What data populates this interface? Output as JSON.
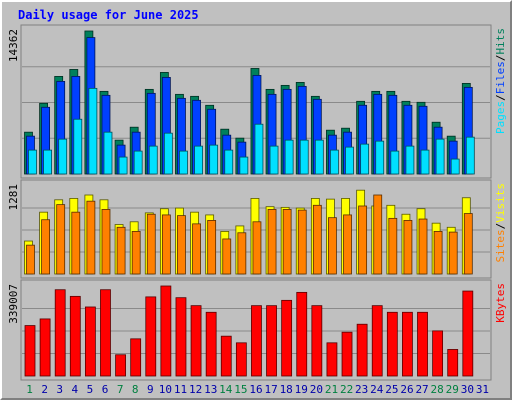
{
  "title": "Daily usage for June 2025",
  "colors": {
    "background": "#c0c0c0",
    "title": "#0000ff",
    "hits": "#00805c",
    "files": "#0040ff",
    "pages": "#00e0ff",
    "visits": "#ffff00",
    "sites": "#ff8000",
    "kbytes": "#ff0000",
    "weekend_label": "#008040",
    "day_label": "#0000aa"
  },
  "chart_data": [
    {
      "type": "bar",
      "panel": "hits-files-pages",
      "max_label": "14362",
      "ylim": [
        0,
        14362
      ],
      "grid": true,
      "legend": [
        "Pages",
        "Files",
        "Hits"
      ],
      "categories": [
        "1",
        "2",
        "3",
        "4",
        "5",
        "6",
        "7",
        "8",
        "9",
        "10",
        "11",
        "12",
        "13",
        "14",
        "15",
        "16",
        "17",
        "18",
        "19",
        "20",
        "21",
        "22",
        "23",
        "24",
        "25",
        "26",
        "27",
        "28",
        "29",
        "30",
        "31"
      ],
      "series": [
        {
          "name": "Hits",
          "values": [
            4200,
            7100,
            9800,
            10500,
            14362,
            8300,
            3400,
            4700,
            8500,
            10200,
            8000,
            7800,
            6900,
            4500,
            3600,
            10600,
            8500,
            8900,
            9200,
            7800,
            4400,
            4600,
            7300,
            8300,
            8300,
            7300,
            7200,
            5200,
            3800,
            9100,
            0
          ]
        },
        {
          "name": "Files",
          "values": [
            3800,
            6700,
            9300,
            9800,
            13700,
            7900,
            2900,
            4200,
            8100,
            9700,
            7600,
            7400,
            6500,
            3900,
            3200,
            9900,
            8000,
            8500,
            8800,
            7500,
            3900,
            4200,
            6900,
            8000,
            7900,
            6900,
            6800,
            4700,
            3300,
            8700,
            0
          ]
        },
        {
          "name": "Pages",
          "values": [
            2400,
            2400,
            3500,
            5500,
            8600,
            4200,
            1700,
            2300,
            2800,
            4100,
            2300,
            2800,
            2900,
            2400,
            1700,
            5000,
            2800,
            3400,
            3400,
            3400,
            2400,
            2700,
            3000,
            3300,
            2300,
            2800,
            2400,
            3500,
            1500,
            3700,
            0
          ]
        }
      ]
    },
    {
      "type": "bar",
      "panel": "visits-sites",
      "max_label": "1281",
      "ylim": [
        0,
        1281
      ],
      "grid": true,
      "legend": [
        "Sites",
        "Visits"
      ],
      "categories": [
        "1",
        "2",
        "3",
        "4",
        "5",
        "6",
        "7",
        "8",
        "9",
        "10",
        "11",
        "12",
        "13",
        "14",
        "15",
        "16",
        "17",
        "18",
        "19",
        "20",
        "21",
        "22",
        "23",
        "24",
        "25",
        "26",
        "27",
        "28",
        "29",
        "30",
        "31"
      ],
      "series": [
        {
          "name": "Visits",
          "values": [
            480,
            900,
            1080,
            1100,
            1150,
            1080,
            720,
            760,
            890,
            950,
            960,
            900,
            860,
            620,
            700,
            1100,
            980,
            970,
            960,
            1100,
            1090,
            1100,
            1220,
            990,
            1000,
            870,
            950,
            740,
            680,
            1110,
            0
          ]
        },
        {
          "name": "Sites",
          "values": [
            420,
            790,
            1010,
            900,
            1060,
            940,
            680,
            620,
            870,
            860,
            850,
            730,
            780,
            510,
            600,
            760,
            940,
            940,
            930,
            1000,
            820,
            860,
            990,
            1150,
            810,
            780,
            800,
            620,
            610,
            880,
            0
          ]
        }
      ]
    },
    {
      "type": "bar",
      "panel": "kbytes",
      "max_label": "339007",
      "ylim": [
        0,
        339007
      ],
      "grid": true,
      "legend": [
        "KBytes"
      ],
      "categories": [
        "1",
        "2",
        "3",
        "4",
        "5",
        "6",
        "7",
        "8",
        "9",
        "10",
        "11",
        "12",
        "13",
        "14",
        "15",
        "16",
        "17",
        "18",
        "19",
        "20",
        "21",
        "22",
        "23",
        "24",
        "25",
        "26",
        "27",
        "28",
        "29",
        "30",
        "31"
      ],
      "series": [
        {
          "name": "KBytes",
          "values": [
            190000,
            215000,
            325000,
            300000,
            260000,
            325000,
            80000,
            140000,
            298000,
            339007,
            295000,
            265000,
            240000,
            150000,
            125000,
            265000,
            265000,
            285000,
            315000,
            265000,
            125000,
            165000,
            195000,
            265000,
            240000,
            240000,
            240000,
            170000,
            100000,
            320000,
            0
          ]
        }
      ]
    }
  ],
  "x_axis": {
    "labels": [
      "1",
      "2",
      "3",
      "4",
      "5",
      "6",
      "7",
      "8",
      "9",
      "10",
      "11",
      "12",
      "13",
      "14",
      "15",
      "16",
      "17",
      "18",
      "19",
      "20",
      "21",
      "22",
      "23",
      "24",
      "25",
      "26",
      "27",
      "28",
      "29",
      "30",
      "31"
    ],
    "weekend_days": [
      "1",
      "7",
      "8",
      "14",
      "15",
      "21",
      "22",
      "28",
      "29"
    ]
  }
}
